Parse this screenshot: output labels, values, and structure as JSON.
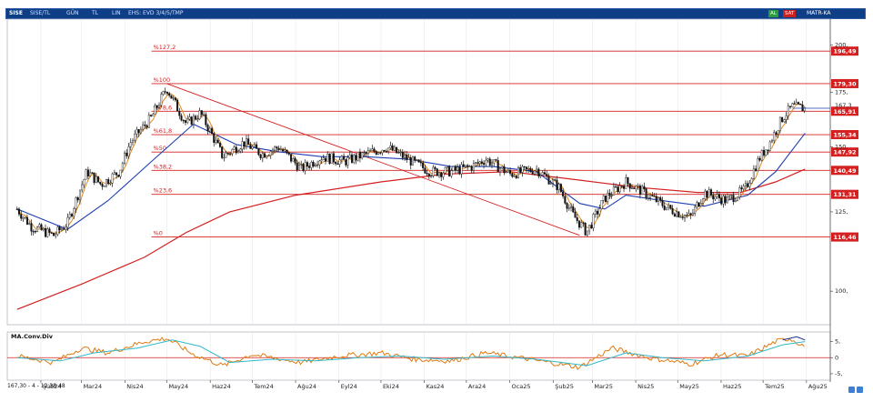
{
  "toolbar": {
    "symbol": "SISE",
    "items": [
      "SISE/TL",
      "GÜN",
      "TL",
      "LIN",
      "EHS: EVD 3/4/5/TMP"
    ],
    "flags": [
      "AL",
      "SAT"
    ],
    "right_label": "MATR-KA"
  },
  "colors": {
    "price": "#111111",
    "ma_short": "#e08a20",
    "ma_mid": "#1f3fb0",
    "ma_long": "#d42020",
    "fib": "#d42020",
    "macd": "#e07a10",
    "signal": "#30b8c8",
    "osc_extra": "#1a2f90",
    "topbar": "#0e3f86"
  },
  "chart_data": [
    {
      "type": "candlestick",
      "title": "",
      "yscale": "log",
      "ylim": [
        91,
        215
      ],
      "y_ticks": [
        {
          "value": 200,
          "label": "200,"
        },
        {
          "value": 175,
          "label": "175,"
        },
        {
          "value": 150,
          "label": "150,"
        },
        {
          "value": 125,
          "label": "125,"
        },
        {
          "value": 100,
          "label": "100,"
        }
      ],
      "x_ticks": [
        "Şub24",
        "Mar24",
        "Nis24",
        "May24",
        "Haz24",
        "Tem24",
        "Ağu24",
        "Eyl24",
        "Eki24",
        "Kas24",
        "Ara24",
        "Oca25",
        "Şub25",
        "Mar25",
        "Nis25",
        "May25",
        "Haz25",
        "Tem25",
        "Ağu25"
      ],
      "x_dates": [
        "2024-02-01",
        "2024-03-01",
        "2024-04-01",
        "2024-05-01",
        "2024-06-01",
        "2024-07-01",
        "2024-08-01",
        "2024-09-01",
        "2024-10-01",
        "2024-11-01",
        "2024-12-01",
        "2025-01-01",
        "2025-02-01",
        "2025-03-01",
        "2025-04-01",
        "2025-05-01",
        "2025-06-01",
        "2025-07-01",
        "2025-08-01"
      ],
      "last_price": {
        "value": 167.3,
        "label": "167,3"
      },
      "fibonacci": [
        {
          "label": "%127,2",
          "price": 196.49,
          "tag": "196,49"
        },
        {
          "label": "%100",
          "price": 179.3,
          "tag": "179,30"
        },
        {
          "label": "%78,6",
          "price": 165.91,
          "tag": "165,91"
        },
        {
          "label": "%61,8",
          "price": 155.34,
          "tag": "155,34"
        },
        {
          "label": "%50",
          "price": 147.92,
          "tag": "147,92"
        },
        {
          "label": "%38,2",
          "price": 140.49,
          "tag": "140,49"
        },
        {
          "label": "%23,6",
          "price": 131.31,
          "tag": "131,31"
        },
        {
          "label": "%0",
          "price": 116.46,
          "tag": "116,46"
        }
      ],
      "trendline": [
        {
          "date": "2024-05-01",
          "price": 179.3
        },
        {
          "date": "2025-02-20",
          "price": 117
        }
      ],
      "price_anchors": [
        [
          "2024-01-15",
          126
        ],
        [
          "2024-01-25",
          120
        ],
        [
          "2024-02-10",
          117
        ],
        [
          "2024-02-20",
          121
        ],
        [
          "2024-03-05",
          140
        ],
        [
          "2024-03-15",
          135
        ],
        [
          "2024-03-28",
          140
        ],
        [
          "2024-04-05",
          152
        ],
        [
          "2024-04-20",
          163
        ],
        [
          "2024-05-01",
          177
        ],
        [
          "2024-05-08",
          168
        ],
        [
          "2024-05-15",
          160
        ],
        [
          "2024-05-25",
          165
        ],
        [
          "2024-06-10",
          146
        ],
        [
          "2024-06-25",
          152
        ],
        [
          "2024-07-08",
          147
        ],
        [
          "2024-07-20",
          150
        ],
        [
          "2024-08-05",
          141
        ],
        [
          "2024-08-20",
          146
        ],
        [
          "2024-09-05",
          144
        ],
        [
          "2024-09-20",
          147
        ],
        [
          "2024-10-05",
          150
        ],
        [
          "2024-10-20",
          145
        ],
        [
          "2024-11-05",
          140
        ],
        [
          "2024-11-20",
          140
        ],
        [
          "2024-12-05",
          142
        ],
        [
          "2024-12-15",
          145
        ],
        [
          "2025-01-01",
          139
        ],
        [
          "2025-01-20",
          141
        ],
        [
          "2025-02-05",
          134
        ],
        [
          "2025-02-15",
          124
        ],
        [
          "2025-02-25",
          118
        ],
        [
          "2025-03-10",
          130
        ],
        [
          "2025-03-25",
          136
        ],
        [
          "2025-04-10",
          131
        ],
        [
          "2025-04-25",
          126
        ],
        [
          "2025-05-10",
          123
        ],
        [
          "2025-05-20",
          132
        ],
        [
          "2025-06-05",
          129
        ],
        [
          "2025-06-18",
          133
        ],
        [
          "2025-06-28",
          145
        ],
        [
          "2025-07-05",
          151
        ],
        [
          "2025-07-15",
          163
        ],
        [
          "2025-07-22",
          168
        ],
        [
          "2025-07-31",
          167.3
        ]
      ],
      "ma_mid_anchors": [
        [
          "2024-01-15",
          126
        ],
        [
          "2024-02-20",
          119
        ],
        [
          "2024-03-20",
          129
        ],
        [
          "2024-04-20",
          144
        ],
        [
          "2024-05-20",
          160
        ],
        [
          "2024-06-20",
          151
        ],
        [
          "2024-07-20",
          148
        ],
        [
          "2024-08-20",
          146
        ],
        [
          "2024-09-20",
          146
        ],
        [
          "2024-10-20",
          145
        ],
        [
          "2024-11-20",
          142
        ],
        [
          "2024-12-20",
          142
        ],
        [
          "2025-01-20",
          140
        ],
        [
          "2025-02-20",
          128
        ],
        [
          "2025-03-10",
          126
        ],
        [
          "2025-03-25",
          131
        ],
        [
          "2025-04-20",
          129
        ],
        [
          "2025-05-20",
          127
        ],
        [
          "2025-06-20",
          131
        ],
        [
          "2025-07-10",
          140
        ],
        [
          "2025-07-31",
          156
        ]
      ],
      "ma_long_anchors": [
        [
          "2024-01-15",
          95
        ],
        [
          "2024-03-01",
          102
        ],
        [
          "2024-04-15",
          110
        ],
        [
          "2024-05-15",
          118
        ],
        [
          "2024-06-15",
          125
        ],
        [
          "2024-08-01",
          131
        ],
        [
          "2024-10-01",
          136
        ],
        [
          "2024-11-15",
          139
        ],
        [
          "2025-01-01",
          140
        ],
        [
          "2025-02-15",
          137
        ],
        [
          "2025-04-01",
          134
        ],
        [
          "2025-05-15",
          132
        ],
        [
          "2025-06-15",
          132
        ],
        [
          "2025-07-10",
          136
        ],
        [
          "2025-07-31",
          141
        ]
      ]
    },
    {
      "type": "line",
      "title": "MA.Conv.Div",
      "ylim": [
        -7,
        8
      ],
      "y_ticks": [
        {
          "value": 5,
          "label": "5,"
        },
        {
          "value": 0,
          "label": "0"
        },
        {
          "value": -5,
          "label": "-5,"
        }
      ],
      "series": [
        {
          "role": "macd",
          "points": [
            [
              "2024-01-15",
              0.5
            ],
            [
              "2024-02-10",
              -1.5
            ],
            [
              "2024-03-01",
              3
            ],
            [
              "2024-03-20",
              1.5
            ],
            [
              "2024-04-15",
              5
            ],
            [
              "2024-05-01",
              6
            ],
            [
              "2024-05-20",
              1
            ],
            [
              "2024-06-10",
              -2.5
            ],
            [
              "2024-07-01",
              1
            ],
            [
              "2024-08-05",
              -1.5
            ],
            [
              "2024-09-01",
              0.5
            ],
            [
              "2024-10-01",
              1.5
            ],
            [
              "2024-10-25",
              -0.5
            ],
            [
              "2024-11-20",
              -1
            ],
            [
              "2024-12-15",
              1.5
            ],
            [
              "2025-01-15",
              -0.5
            ],
            [
              "2025-02-20",
              -3
            ],
            [
              "2025-03-15",
              3
            ],
            [
              "2025-04-10",
              0
            ],
            [
              "2025-05-10",
              -2
            ],
            [
              "2025-06-01",
              1
            ],
            [
              "2025-06-20",
              0.5
            ],
            [
              "2025-07-10",
              5
            ],
            [
              "2025-07-20",
              6
            ],
            [
              "2025-07-31",
              3.5
            ]
          ]
        },
        {
          "role": "signal",
          "points": [
            [
              "2024-01-15",
              0
            ],
            [
              "2024-02-15",
              -1
            ],
            [
              "2024-03-10",
              1.5
            ],
            [
              "2024-04-10",
              3
            ],
            [
              "2024-05-05",
              5.5
            ],
            [
              "2024-05-25",
              3.5
            ],
            [
              "2024-06-15",
              -1.5
            ],
            [
              "2024-07-15",
              -0.5
            ],
            [
              "2024-08-15",
              -1
            ],
            [
              "2024-09-15",
              0
            ],
            [
              "2024-10-15",
              0.5
            ],
            [
              "2024-11-15",
              -0.5
            ],
            [
              "2024-12-20",
              0.5
            ],
            [
              "2025-01-20",
              -0.5
            ],
            [
              "2025-02-25",
              -2.5
            ],
            [
              "2025-03-25",
              1.5
            ],
            [
              "2025-04-20",
              0
            ],
            [
              "2025-05-20",
              -1
            ],
            [
              "2025-06-20",
              0.5
            ],
            [
              "2025-07-15",
              4
            ],
            [
              "2025-07-31",
              5
            ]
          ]
        },
        {
          "role": "extra",
          "points": [
            [
              "2025-07-15",
              5.5
            ],
            [
              "2025-07-25",
              6.5
            ],
            [
              "2025-07-31",
              5.5
            ]
          ]
        }
      ]
    }
  ],
  "status": {
    "readout": "167,30 - 4 - 12:38:48"
  }
}
